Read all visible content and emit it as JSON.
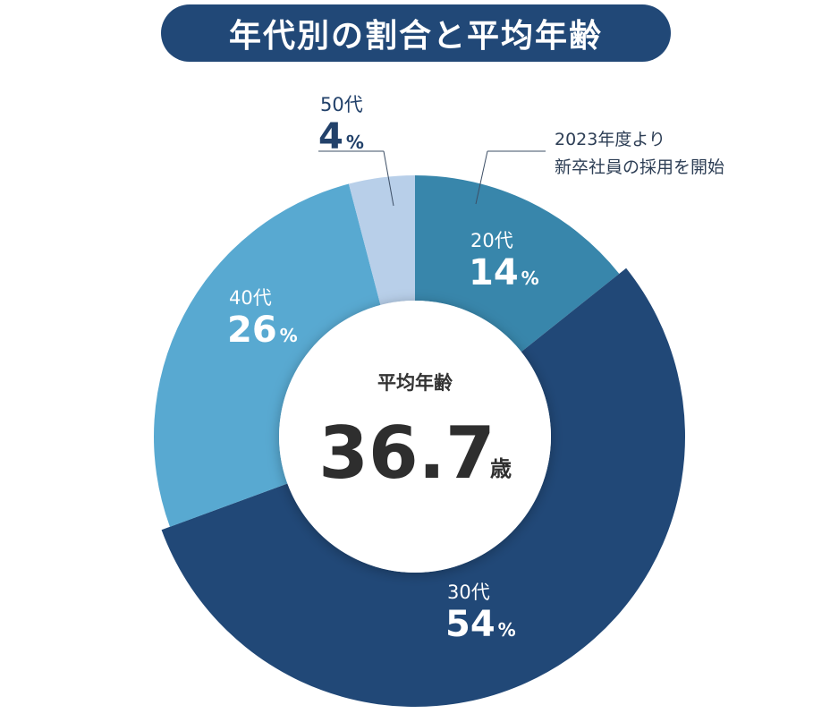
{
  "title": "年代別の割合と平均年齢",
  "chart_data": {
    "type": "pie",
    "title": "年代別の割合と平均年齢",
    "categories": [
      "20代",
      "30代",
      "40代",
      "50代"
    ],
    "values": [
      14,
      54,
      26,
      4
    ],
    "unit": "%",
    "labels": [
      {
        "category": "20代",
        "value": "14",
        "unit": "%"
      },
      {
        "category": "30代",
        "value": "54",
        "unit": "%"
      },
      {
        "category": "40代",
        "value": "26",
        "unit": "%"
      },
      {
        "category": "50代",
        "value": "4",
        "unit": "%"
      }
    ],
    "colors": [
      "#3886ab",
      "#214877",
      "#58a9d1",
      "#b8cfe9"
    ],
    "center": {
      "title": "平均年齢",
      "value": "36.7",
      "unit": "歳"
    },
    "annotation": {
      "lines": [
        "2023年度より",
        "新卒社員の採用を開始"
      ]
    }
  }
}
